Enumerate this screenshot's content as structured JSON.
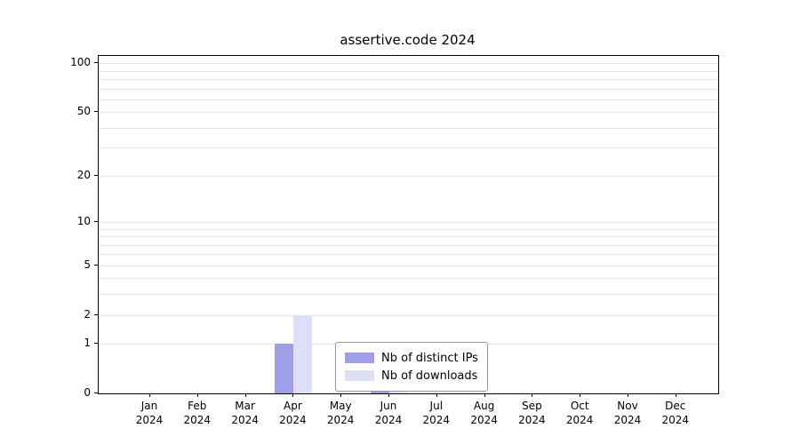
{
  "chart_data": {
    "type": "bar",
    "title": "assertive.code 2024",
    "categories": [
      "Jan",
      "Feb",
      "Mar",
      "Apr",
      "May",
      "Jun",
      "Jul",
      "Aug",
      "Sep",
      "Oct",
      "Nov",
      "Dec"
    ],
    "year_label": "2024",
    "series": [
      {
        "name": "Nb of distinct IPs",
        "color": "#9f9fe9",
        "values": [
          0,
          0,
          0,
          1,
          0,
          1,
          0,
          0,
          0,
          0,
          0,
          0
        ]
      },
      {
        "name": "Nb of downloads",
        "color": "#dedef9",
        "values": [
          0,
          0,
          0,
          2,
          0,
          1,
          0,
          0,
          0,
          0,
          0,
          0
        ]
      }
    ],
    "y_ticks": [
      0,
      1,
      2,
      5,
      10,
      20,
      50,
      100
    ],
    "y_scale": "log1p",
    "ylim": [
      0,
      111
    ],
    "grid": "horizontal-minor",
    "legend_position": "bottom-center"
  }
}
